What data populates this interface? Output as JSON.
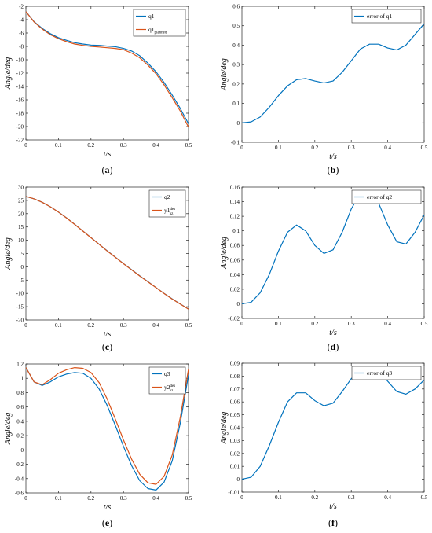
{
  "colors": {
    "blue": "#0072BD",
    "orange": "#D95319",
    "axis": "#262626"
  },
  "chart_data": [
    {
      "id": "a",
      "type": "line",
      "panel_label": "(a)",
      "xlabel": "t/s",
      "ylabel": "Angle/deg",
      "xlim": [
        0,
        0.5
      ],
      "ylim": [
        -22,
        -2
      ],
      "xticks": [
        "0",
        "0.1",
        "0.2",
        "0.3",
        "0.4",
        "0.5"
      ],
      "yticks": [
        "-22",
        "-20",
        "-18",
        "-16",
        "-14",
        "-12",
        "-10",
        "-8",
        "-6",
        "-4",
        "-2"
      ],
      "legend": "top-right",
      "series": [
        {
          "name": "q1",
          "color": "#0072BD",
          "x": [
            0,
            0.025,
            0.05,
            0.075,
            0.1,
            0.125,
            0.15,
            0.175,
            0.2,
            0.225,
            0.25,
            0.275,
            0.3,
            0.325,
            0.35,
            0.375,
            0.4,
            0.425,
            0.45,
            0.475,
            0.5
          ],
          "y": [
            -2.8,
            -4.3,
            -5.3,
            -6.1,
            -6.7,
            -7.1,
            -7.45,
            -7.65,
            -7.8,
            -7.85,
            -7.95,
            -8.05,
            -8.3,
            -8.7,
            -9.4,
            -10.5,
            -11.8,
            -13.4,
            -15.3,
            -17.3,
            -19.6
          ]
        },
        {
          "name": "q1",
          "name_sub": "planned",
          "color": "#D95319",
          "x": [
            0,
            0.025,
            0.05,
            0.075,
            0.1,
            0.125,
            0.15,
            0.175,
            0.2,
            0.225,
            0.25,
            0.275,
            0.3,
            0.325,
            0.35,
            0.375,
            0.4,
            0.425,
            0.45,
            0.475,
            0.5
          ],
          "y": [
            -2.8,
            -4.35,
            -5.4,
            -6.25,
            -6.85,
            -7.3,
            -7.65,
            -7.85,
            -8.0,
            -8.1,
            -8.2,
            -8.3,
            -8.5,
            -9.0,
            -9.7,
            -10.8,
            -12.1,
            -13.75,
            -15.7,
            -17.7,
            -20.1
          ]
        }
      ]
    },
    {
      "id": "b",
      "type": "line",
      "panel_label": "(b)",
      "xlabel": "t/s",
      "ylabel": "Angle/deg",
      "xlim": [
        0,
        0.5
      ],
      "ylim": [
        -0.1,
        0.6
      ],
      "xticks": [
        "0",
        "0.1",
        "0.2",
        "0.3",
        "0.4",
        "0.5"
      ],
      "yticks": [
        "-0.1",
        "0",
        "0.1",
        "0.2",
        "0.3",
        "0.4",
        "0.5",
        "0.6"
      ],
      "legend": "top-right",
      "series": [
        {
          "name": "error of q1",
          "color": "#0072BD",
          "x": [
            0,
            0.025,
            0.05,
            0.075,
            0.1,
            0.125,
            0.15,
            0.175,
            0.2,
            0.225,
            0.25,
            0.275,
            0.3,
            0.325,
            0.35,
            0.375,
            0.4,
            0.425,
            0.45,
            0.475,
            0.5
          ],
          "y": [
            0,
            0.005,
            0.03,
            0.08,
            0.14,
            0.19,
            0.222,
            0.228,
            0.215,
            0.205,
            0.215,
            0.26,
            0.32,
            0.38,
            0.405,
            0.405,
            0.385,
            0.375,
            0.4,
            0.455,
            0.51
          ]
        }
      ]
    },
    {
      "id": "c",
      "type": "line",
      "panel_label": "(c)",
      "xlabel": "t/s",
      "ylabel": "Angle/deg",
      "xlim": [
        0,
        0.5
      ],
      "ylim": [
        -20,
        30
      ],
      "xticks": [
        "0",
        "0.1",
        "0.2",
        "0.3",
        "0.4",
        "0.5"
      ],
      "yticks": [
        "-20",
        "-15",
        "-10",
        "-5",
        "0",
        "5",
        "10",
        "15",
        "20",
        "25",
        "30"
      ],
      "legend": "top-right",
      "series": [
        {
          "name": "q2",
          "color": "#0072BD",
          "x": [
            0,
            0.025,
            0.05,
            0.075,
            0.1,
            0.125,
            0.15,
            0.175,
            0.2,
            0.225,
            0.25,
            0.275,
            0.3,
            0.325,
            0.35,
            0.375,
            0.4,
            0.425,
            0.45,
            0.475,
            0.5
          ],
          "y": [
            26.5,
            25.6,
            24.3,
            22.6,
            20.6,
            18.4,
            16.0,
            13.5,
            11.0,
            8.5,
            6.0,
            3.6,
            1.2,
            -1.1,
            -3.4,
            -5.6,
            -7.8,
            -10.0,
            -12.1,
            -14.0,
            -15.9
          ]
        },
        {
          "name": "y1",
          "name_sup": "des",
          "name_sub": "nz",
          "color": "#D95319",
          "x": [
            0,
            0.025,
            0.05,
            0.075,
            0.1,
            0.125,
            0.15,
            0.175,
            0.2,
            0.225,
            0.25,
            0.275,
            0.3,
            0.325,
            0.35,
            0.375,
            0.4,
            0.425,
            0.45,
            0.475,
            0.5
          ],
          "y": [
            26.5,
            25.6,
            24.3,
            22.6,
            20.6,
            18.35,
            15.95,
            13.45,
            10.95,
            8.45,
            5.95,
            3.55,
            1.15,
            -1.15,
            -3.45,
            -5.65,
            -7.85,
            -10.05,
            -12.15,
            -14.05,
            -15.95
          ]
        }
      ]
    },
    {
      "id": "d",
      "type": "line",
      "panel_label": "(d)",
      "xlabel": "t/s",
      "ylabel": "Angle/deg",
      "xlim": [
        0,
        0.5
      ],
      "ylim": [
        -0.02,
        0.16
      ],
      "xticks": [
        "0",
        "0.1",
        "0.2",
        "0.3",
        "0.4",
        "0.5"
      ],
      "yticks": [
        "-0.02",
        "0",
        "0.02",
        "0.04",
        "0.06",
        "0.08",
        "0.1",
        "0.12",
        "0.14",
        "0.16"
      ],
      "legend": "top-right",
      "series": [
        {
          "name": "error of q2",
          "color": "#0072BD",
          "x": [
            0,
            0.025,
            0.05,
            0.075,
            0.1,
            0.125,
            0.15,
            0.175,
            0.2,
            0.225,
            0.25,
            0.275,
            0.3,
            0.325,
            0.35,
            0.375,
            0.4,
            0.425,
            0.45,
            0.475,
            0.5
          ],
          "y": [
            0,
            0.002,
            0.015,
            0.04,
            0.072,
            0.098,
            0.108,
            0.1,
            0.08,
            0.069,
            0.074,
            0.098,
            0.13,
            0.152,
            0.155,
            0.138,
            0.108,
            0.085,
            0.082,
            0.098,
            0.122
          ]
        }
      ]
    },
    {
      "id": "e",
      "type": "line",
      "panel_label": "(e)",
      "xlabel": "t/s",
      "ylabel": "Angle/deg",
      "xlim": [
        0,
        0.5
      ],
      "ylim": [
        -0.6,
        1.2
      ],
      "xticks": [
        "0",
        "0.1",
        "0.2",
        "0.3",
        "0.4",
        "0.5"
      ],
      "yticks": [
        "-0.6",
        "-0.4",
        "-0.2",
        "0",
        "0.2",
        "0.4",
        "0.6",
        "0.8",
        "1",
        "1.2"
      ],
      "legend": "top-right",
      "series": [
        {
          "name": "q3",
          "color": "#0072BD",
          "x": [
            0,
            0.025,
            0.05,
            0.075,
            0.1,
            0.125,
            0.15,
            0.175,
            0.2,
            0.225,
            0.25,
            0.275,
            0.3,
            0.325,
            0.35,
            0.375,
            0.4,
            0.425,
            0.45,
            0.475,
            0.5
          ],
          "y": [
            1.15,
            0.95,
            0.9,
            0.95,
            1.02,
            1.06,
            1.08,
            1.07,
            1.0,
            0.85,
            0.62,
            0.34,
            0.05,
            -0.22,
            -0.43,
            -0.54,
            -0.56,
            -0.45,
            -0.15,
            0.38,
            1.05
          ]
        },
        {
          "name": "y2",
          "name_sup": "des",
          "name_sub": "nz",
          "color": "#D95319",
          "x": [
            0,
            0.025,
            0.05,
            0.075,
            0.1,
            0.125,
            0.15,
            0.175,
            0.2,
            0.225,
            0.25,
            0.275,
            0.3,
            0.325,
            0.35,
            0.375,
            0.4,
            0.425,
            0.45,
            0.475,
            0.5
          ],
          "y": [
            1.15,
            0.95,
            0.91,
            0.98,
            1.07,
            1.12,
            1.15,
            1.14,
            1.08,
            0.94,
            0.71,
            0.43,
            0.14,
            -0.13,
            -0.34,
            -0.46,
            -0.48,
            -0.37,
            -0.07,
            0.46,
            1.13
          ]
        }
      ]
    },
    {
      "id": "f",
      "type": "line",
      "panel_label": "(f)",
      "xlabel": "t/s",
      "ylabel": "Angle/deg",
      "xlim": [
        0,
        0.5
      ],
      "ylim": [
        -0.01,
        0.09
      ],
      "xticks": [
        "0",
        "0.1",
        "0.2",
        "0.3",
        "0.4",
        "0.5"
      ],
      "yticks": [
        "-0.01",
        "0",
        "0.01",
        "0.02",
        "0.03",
        "0.04",
        "0.05",
        "0.06",
        "0.07",
        "0.08",
        "0.09"
      ],
      "legend": "top-right",
      "series": [
        {
          "name": "error of q3",
          "color": "#0072BD",
          "x": [
            0,
            0.025,
            0.05,
            0.075,
            0.1,
            0.125,
            0.15,
            0.175,
            0.2,
            0.225,
            0.25,
            0.275,
            0.3,
            0.325,
            0.35,
            0.375,
            0.4,
            0.425,
            0.45,
            0.475,
            0.5
          ],
          "y": [
            0,
            0.0015,
            0.01,
            0.026,
            0.044,
            0.06,
            0.067,
            0.067,
            0.061,
            0.057,
            0.059,
            0.068,
            0.078,
            0.085,
            0.087,
            0.084,
            0.076,
            0.068,
            0.066,
            0.07,
            0.077
          ]
        }
      ]
    }
  ]
}
